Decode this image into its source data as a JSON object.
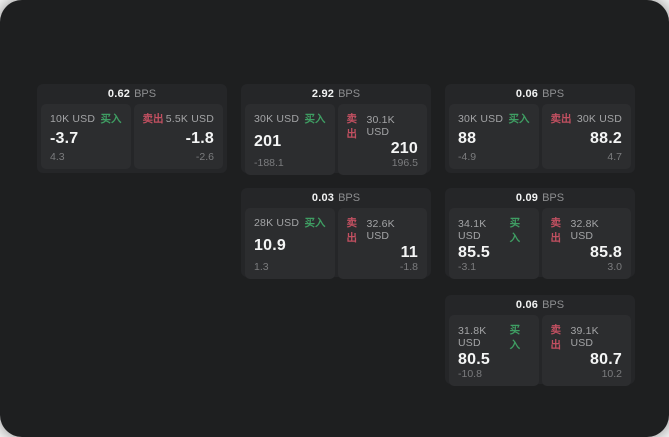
{
  "colors": {
    "panel_bg": "#1e1f20",
    "card_bg": "#252628",
    "tile_bg": "#2c2d2f",
    "buy_green": "#3f9e63",
    "sell_red": "#c25061",
    "value_white": "#f4f5f5",
    "label_gray": "#a3a4a6",
    "delta_gray": "#7b7c7e"
  },
  "labels": {
    "buy": "买入",
    "sell": "卖出",
    "bps_unit": "BPS"
  },
  "cards": [
    {
      "col": 0,
      "row": 0,
      "bps": "0.62",
      "buy": {
        "size": "10K USD",
        "value": "-3.7",
        "delta": "4.3"
      },
      "sell": {
        "size": "5.5K USD",
        "value": "-1.8",
        "delta": "-2.6"
      }
    },
    {
      "col": 1,
      "row": 0,
      "bps": "2.92",
      "buy": {
        "size": "30K USD",
        "value": "201",
        "delta": "-188.1"
      },
      "sell": {
        "size": "30.1K USD",
        "value": "210",
        "delta": "196.5"
      }
    },
    {
      "col": 2,
      "row": 0,
      "bps": "0.06",
      "buy": {
        "size": "30K USD",
        "value": "88",
        "delta": "-4.9"
      },
      "sell": {
        "size": "30K USD",
        "value": "88.2",
        "delta": "4.7"
      }
    },
    {
      "col": 1,
      "row": 1,
      "bps": "0.03",
      "buy": {
        "size": "28K USD",
        "value": "10.9",
        "delta": "1.3"
      },
      "sell": {
        "size": "32.6K USD",
        "value": "11",
        "delta": "-1.8"
      }
    },
    {
      "col": 2,
      "row": 1,
      "bps": "0.09",
      "buy": {
        "size": "34.1K USD",
        "value": "85.5",
        "delta": "-3.1"
      },
      "sell": {
        "size": "32.8K USD",
        "value": "85.8",
        "delta": "3.0"
      }
    },
    {
      "col": 2,
      "row": 2,
      "bps": "0.06",
      "buy": {
        "size": "31.8K USD",
        "value": "80.5",
        "delta": "-10.8"
      },
      "sell": {
        "size": "39.1K USD",
        "value": "80.7",
        "delta": "10.2"
      }
    }
  ]
}
